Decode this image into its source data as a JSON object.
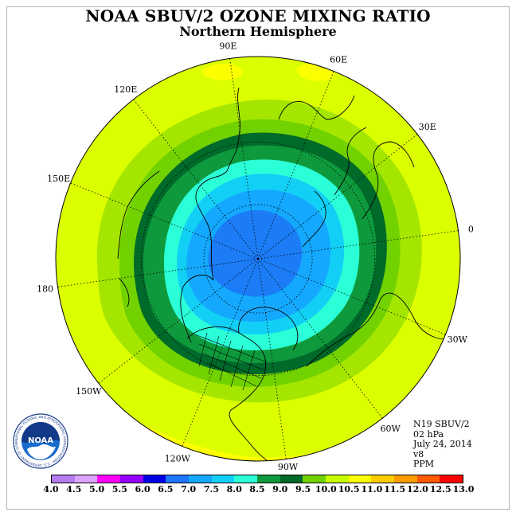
{
  "header": {
    "title": "NOAA SBUV/2 OZONE MIXING RATIO",
    "subtitle": "Northern Hemisphere"
  },
  "map": {
    "projection": "north polar stereographic",
    "longitude_labels": [
      {
        "text": "90E",
        "lon": 90
      },
      {
        "text": "60E",
        "lon": 60
      },
      {
        "text": "30E",
        "lon": 30
      },
      {
        "text": "0",
        "lon": 0
      },
      {
        "text": "30W",
        "lon": -30
      },
      {
        "text": "60W",
        "lon": -60
      },
      {
        "text": "90W",
        "lon": -90
      },
      {
        "text": "120W",
        "lon": -120
      },
      {
        "text": "150W",
        "lon": -150
      },
      {
        "text": "180",
        "lon": 180
      },
      {
        "text": "150E",
        "lon": 150
      },
      {
        "text": "120E",
        "lon": 120
      }
    ],
    "latitude_circles": [
      30,
      60
    ],
    "field_bands_ppm": [
      {
        "level": 10.5,
        "color": "#fbff00"
      },
      {
        "level": 10.0,
        "color": "#dcff00"
      },
      {
        "level": 9.5,
        "color": "#a4e600"
      },
      {
        "level": 9.0,
        "color": "#72d200"
      },
      {
        "level": 8.5,
        "color": "#006a2a"
      },
      {
        "level": 8.0,
        "color": "#0e9a3c"
      },
      {
        "level": 7.5,
        "color": "#2bffd7"
      },
      {
        "level": 7.0,
        "color": "#12d0f5"
      },
      {
        "level": 6.5,
        "color": "#14a8ff"
      },
      {
        "level": 6.0,
        "color": "#1b7cf5"
      }
    ]
  },
  "info": {
    "satellite": "N19 SBUV/2",
    "pressure": "02 hPa",
    "date": "July 24, 2014",
    "version": "v8",
    "units": "PPM"
  },
  "colorbar": {
    "ticks": [
      "4.0",
      "4.5",
      "5.0",
      "5.5",
      "6.0",
      "6.5",
      "7.0",
      "7.5",
      "8.0",
      "8.5",
      "9.0",
      "9.5",
      "10.0",
      "10.5",
      "11.0",
      "11.5",
      "12.0",
      "12.5",
      "13.0"
    ],
    "colors": [
      "#b47cf0",
      "#dca4ff",
      "#ff00ff",
      "#9600ff",
      "#0000e6",
      "#1e78ff",
      "#14a8ff",
      "#12d0f5",
      "#2bffd7",
      "#0e9a3c",
      "#006a2a",
      "#72d200",
      "#c8ff00",
      "#fbff00",
      "#ffcc00",
      "#ff9c00",
      "#ff5a00",
      "#ff0000",
      "#8b5a3c"
    ]
  },
  "logo": {
    "text": "NOAA",
    "ring_text": "NATIONAL OCEANIC AND ATMOSPHERIC ADMINISTRATION · U.S. DEPARTMENT OF COMMERCE"
  }
}
